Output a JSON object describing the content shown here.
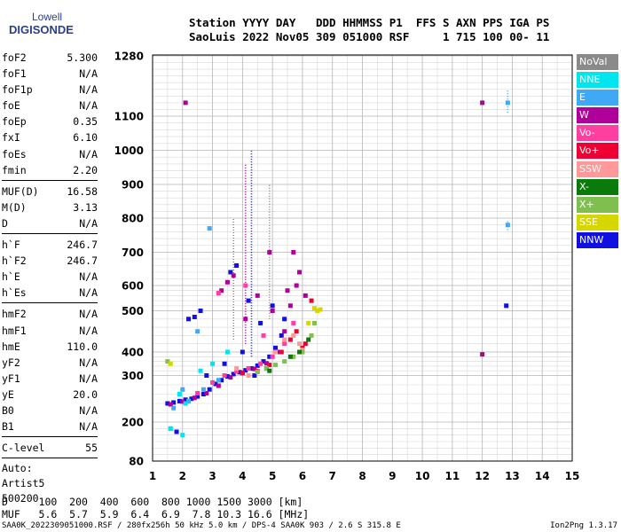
{
  "logo": {
    "line1": "Lowell",
    "line2": "DIGISONDE"
  },
  "header": {
    "line1": "Station YYYY DAY   DDD HHMMSS P1  FFS S AXN PPS IGA PS",
    "line2": "SaoLuis 2022 Nov05 309 051000 RSF     1 715 100 00- 11"
  },
  "params": [
    {
      "k": "foF2",
      "v": "5.300"
    },
    {
      "k": "foF1",
      "v": "N/A"
    },
    {
      "k": "foF1p",
      "v": "N/A"
    },
    {
      "k": "foE",
      "v": "N/A"
    },
    {
      "k": "foEp",
      "v": "0.35"
    },
    {
      "k": "fxI",
      "v": "6.10"
    },
    {
      "k": "foEs",
      "v": "N/A"
    },
    {
      "k": "fmin",
      "v": "2.20"
    },
    {
      "sep": true
    },
    {
      "k": "MUF(D)",
      "v": "16.58"
    },
    {
      "k": "M(D)",
      "v": "3.13"
    },
    {
      "k": "D",
      "v": "N/A"
    },
    {
      "sep": true
    },
    {
      "k": "h`F",
      "v": "246.7"
    },
    {
      "k": "h`F2",
      "v": "246.7"
    },
    {
      "k": "h`E",
      "v": "N/A"
    },
    {
      "k": "h`Es",
      "v": "N/A"
    },
    {
      "sep": true
    },
    {
      "k": "hmF2",
      "v": "N/A"
    },
    {
      "k": "hmF1",
      "v": "N/A"
    },
    {
      "k": "hmE",
      "v": "110.0"
    },
    {
      "k": "yF2",
      "v": "N/A"
    },
    {
      "k": "yF1",
      "v": "N/A"
    },
    {
      "k": "yE",
      "v": "20.0"
    },
    {
      "k": "B0",
      "v": "N/A"
    },
    {
      "k": "B1",
      "v": "N/A"
    },
    {
      "sep": true
    },
    {
      "k": "C-level",
      "v": "55"
    },
    {
      "sep": true
    },
    {
      "t": "Auto:"
    },
    {
      "t": "Artist5"
    },
    {
      "t": "500200"
    }
  ],
  "legend": [
    {
      "label": "NoVal",
      "color": "#8a8a8a"
    },
    {
      "label": "NNE",
      "color": "#00e5ee"
    },
    {
      "label": "E",
      "color": "#3fa9f5"
    },
    {
      "label": "W",
      "color": "#b0009a"
    },
    {
      "label": "Vo-",
      "color": "#ff3fa0"
    },
    {
      "label": "Vo+",
      "color": "#ee0033"
    },
    {
      "label": "SSW",
      "color": "#ff9999"
    },
    {
      "label": "X-",
      "color": "#0a7a0a"
    },
    {
      "label": "X+",
      "color": "#7fbf4f"
    },
    {
      "label": "SSE",
      "color": "#d6d600"
    },
    {
      "label": "NNW",
      "color": "#1010e0"
    }
  ],
  "bottom": {
    "line1": "D     100  200  400  600  800 1000 1500 3000 [km]",
    "line2": "MUF   5.6  5.7  5.9  6.4  6.9  7.8 10.3 16.6 [MHz]"
  },
  "footer": "SAA0K_2022309051000.RSF / 280fx256h 50 kHz 5.0 km / DPS-4 SAA0K 903 / 2.6 S 315.8 E",
  "version": "Ion2Png 1.3.17",
  "chart_data": {
    "type": "scatter",
    "title": "",
    "xlabel": "",
    "ylabel": "",
    "xlim": [
      1,
      15
    ],
    "ylim": [
      80,
      1280
    ],
    "x_ticks": [
      "1",
      "2",
      "3",
      "4",
      "5",
      "6",
      "7",
      "8",
      "9",
      "10",
      "11",
      "12",
      "13",
      "14",
      "15"
    ],
    "y_ticks": [
      "80",
      "200",
      "300",
      "400",
      "500",
      "600",
      "700",
      "800",
      "900",
      "1000",
      "1100",
      "1280"
    ],
    "y_tick_values": [
      80,
      200,
      300,
      400,
      500,
      600,
      700,
      800,
      900,
      1000,
      1100,
      1280
    ],
    "grid": true,
    "y_minor_step": 20,
    "x_minor_step": 0.5,
    "series": [
      {
        "legend": "NNW",
        "points": [
          [
            1.5,
            240
          ],
          [
            1.7,
            242
          ],
          [
            1.9,
            245
          ],
          [
            2.1,
            248
          ],
          [
            2.3,
            250
          ],
          [
            2.5,
            255
          ],
          [
            2.7,
            260
          ],
          [
            2.9,
            270
          ],
          [
            3.1,
            282
          ],
          [
            3.3,
            290
          ],
          [
            3.5,
            298
          ],
          [
            3.7,
            306
          ],
          [
            3.9,
            314
          ],
          [
            4.1,
            322
          ],
          [
            4.3,
            330
          ],
          [
            4.5,
            342
          ],
          [
            4.7,
            360
          ],
          [
            4.9,
            380
          ],
          [
            5.1,
            410
          ],
          [
            5.3,
            440
          ],
          [
            2.2,
            480
          ],
          [
            2.4,
            485
          ],
          [
            2.6,
            500
          ],
          [
            3.6,
            640
          ],
          [
            3.8,
            660
          ],
          [
            4.2,
            540
          ],
          [
            4.6,
            470
          ],
          [
            5.0,
            520
          ],
          [
            5.4,
            480
          ],
          [
            4.0,
            400
          ],
          [
            3.4,
            350
          ],
          [
            2.8,
            300
          ],
          [
            4.4,
            300
          ],
          [
            4.8,
            330
          ],
          [
            1.8,
            170
          ],
          [
            12.8,
            520
          ]
        ]
      },
      {
        "legend": "W",
        "points": [
          [
            1.6,
            238
          ],
          [
            2.0,
            244
          ],
          [
            2.4,
            252
          ],
          [
            2.8,
            262
          ],
          [
            3.2,
            278
          ],
          [
            3.6,
            296
          ],
          [
            4.0,
            312
          ],
          [
            4.4,
            328
          ],
          [
            4.8,
            352
          ],
          [
            5.2,
            400
          ],
          [
            5.4,
            450
          ],
          [
            5.6,
            520
          ],
          [
            5.8,
            600
          ],
          [
            5.9,
            640
          ],
          [
            5.5,
            580
          ],
          [
            5.0,
            500
          ],
          [
            3.3,
            580
          ],
          [
            3.5,
            610
          ],
          [
            3.7,
            630
          ],
          [
            4.5,
            560
          ],
          [
            4.1,
            480
          ],
          [
            2.1,
            1140
          ],
          [
            12.0,
            1140
          ],
          [
            12.0,
            390
          ],
          [
            4.9,
            700
          ],
          [
            5.7,
            700
          ],
          [
            6.1,
            560
          ]
        ]
      },
      {
        "legend": "Vo-",
        "points": [
          [
            2.5,
            262
          ],
          [
            3.0,
            285
          ],
          [
            3.4,
            300
          ],
          [
            3.8,
            318
          ],
          [
            4.2,
            330
          ],
          [
            4.6,
            350
          ],
          [
            5.0,
            380
          ],
          [
            5.4,
            420
          ],
          [
            5.7,
            470
          ],
          [
            4.1,
            600
          ],
          [
            3.2,
            570
          ],
          [
            4.7,
            440
          ]
        ]
      },
      {
        "legend": "Vo+",
        "points": [
          [
            4.5,
            318
          ],
          [
            4.9,
            345
          ],
          [
            5.3,
            400
          ],
          [
            5.6,
            430
          ],
          [
            5.8,
            450
          ],
          [
            6.0,
            410
          ],
          [
            6.1,
            420
          ],
          [
            4.0,
            310
          ],
          [
            6.3,
            540
          ]
        ]
      },
      {
        "legend": "SSW",
        "points": [
          [
            5.1,
            400
          ],
          [
            5.4,
            430
          ],
          [
            5.7,
            440
          ],
          [
            5.9,
            420
          ],
          [
            6.0,
            405
          ],
          [
            4.2,
            300
          ],
          [
            3.8,
            330
          ]
        ]
      },
      {
        "legend": "X+",
        "points": [
          [
            4.5,
            315
          ],
          [
            4.8,
            330
          ],
          [
            5.1,
            345
          ],
          [
            5.4,
            360
          ],
          [
            5.7,
            380
          ],
          [
            6.0,
            400
          ],
          [
            6.3,
            440
          ],
          [
            6.4,
            470
          ],
          [
            6.5,
            500
          ],
          [
            1.5,
            360
          ]
        ]
      },
      {
        "legend": "X-",
        "points": [
          [
            5.6,
            380
          ],
          [
            5.9,
            400
          ],
          [
            6.2,
            430
          ],
          [
            4.9,
            320
          ]
        ]
      },
      {
        "legend": "SSE",
        "points": [
          [
            6.2,
            470
          ],
          [
            6.4,
            510
          ],
          [
            6.5,
            500
          ],
          [
            6.6,
            505
          ],
          [
            1.6,
            350
          ]
        ]
      },
      {
        "legend": "E",
        "points": [
          [
            1.7,
            230
          ],
          [
            2.2,
            245
          ],
          [
            2.7,
            270
          ],
          [
            3.2,
            290
          ],
          [
            2.0,
            270
          ],
          [
            1.6,
            180
          ],
          [
            2.9,
            770
          ],
          [
            2.5,
            450
          ],
          [
            12.85,
            1140
          ],
          [
            12.85,
            780
          ]
        ]
      },
      {
        "legend": "NNE",
        "points": [
          [
            1.9,
            260
          ],
          [
            2.1,
            240
          ],
          [
            2.6,
            320
          ],
          [
            3.0,
            350
          ],
          [
            3.5,
            400
          ],
          [
            1.6,
            180
          ],
          [
            2.0,
            160
          ]
        ]
      }
    ],
    "vertical_streaks": [
      {
        "x": 4.3,
        "from": 380,
        "to": 1000,
        "legend": "NNW"
      },
      {
        "x": 4.1,
        "from": 420,
        "to": 960,
        "legend": "W"
      },
      {
        "x": 3.7,
        "from": 430,
        "to": 800,
        "legend": "NoVal"
      },
      {
        "x": 4.9,
        "from": 480,
        "to": 900,
        "legend": "NoVal"
      },
      {
        "x": 12.85,
        "from": 1110,
        "to": 1180,
        "legend": "E"
      },
      {
        "x": 12.85,
        "from": 765,
        "to": 795,
        "legend": "E"
      }
    ]
  }
}
